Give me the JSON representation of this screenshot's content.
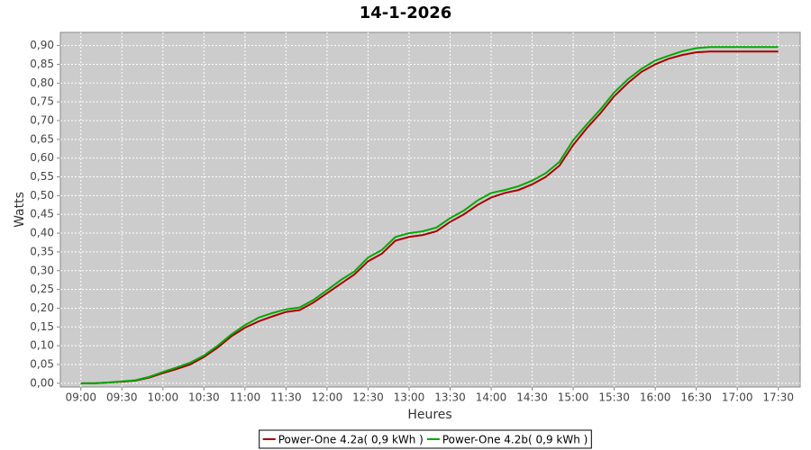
{
  "chart_data": {
    "type": "line",
    "title": "14-1-2026",
    "x_label": "Heures",
    "y_label": "Watts",
    "x": [
      540,
      550,
      560,
      570,
      580,
      590,
      600,
      610,
      620,
      630,
      640,
      650,
      660,
      670,
      680,
      690,
      700,
      710,
      720,
      730,
      740,
      750,
      760,
      770,
      780,
      790,
      800,
      810,
      820,
      830,
      840,
      850,
      860,
      870,
      880,
      890,
      900,
      910,
      920,
      930,
      940,
      950,
      960,
      970,
      980,
      990,
      1000,
      1010,
      1020,
      1030,
      1040,
      1050
    ],
    "series": [
      {
        "name": "Power-One 4.2a( 0,9 kWh )",
        "color": "#aa0000",
        "values": [
          0,
          0,
          0.002,
          0.004,
          0.007,
          0.015,
          0.027,
          0.038,
          0.05,
          0.07,
          0.095,
          0.125,
          0.148,
          0.165,
          0.178,
          0.19,
          0.195,
          0.215,
          0.24,
          0.265,
          0.29,
          0.325,
          0.345,
          0.38,
          0.39,
          0.395,
          0.405,
          0.43,
          0.45,
          0.475,
          0.495,
          0.507,
          0.515,
          0.53,
          0.55,
          0.58,
          0.635,
          0.68,
          0.72,
          0.765,
          0.8,
          0.83,
          0.85,
          0.865,
          0.875,
          0.882,
          0.884,
          0.884,
          0.884,
          0.884,
          0.884,
          0.884
        ]
      },
      {
        "name": "Power-One 4.2b( 0,9 kWh )",
        "color": "#00aa00",
        "values": [
          0,
          0,
          0.002,
          0.005,
          0.008,
          0.017,
          0.03,
          0.042,
          0.055,
          0.074,
          0.1,
          0.13,
          0.155,
          0.175,
          0.187,
          0.197,
          0.202,
          0.222,
          0.248,
          0.275,
          0.298,
          0.335,
          0.355,
          0.39,
          0.4,
          0.405,
          0.415,
          0.44,
          0.46,
          0.487,
          0.507,
          0.515,
          0.525,
          0.54,
          0.56,
          0.59,
          0.648,
          0.69,
          0.73,
          0.775,
          0.81,
          0.838,
          0.86,
          0.873,
          0.885,
          0.893,
          0.896,
          0.896,
          0.896,
          0.896,
          0.896,
          0.896
        ]
      }
    ],
    "xlim": [
      525,
      1066
    ],
    "ylim": [
      -0.01,
      0.935
    ],
    "xticks": [
      {
        "value": 540,
        "label": "09:00"
      },
      {
        "value": 570,
        "label": "09:30"
      },
      {
        "value": 600,
        "label": "10:00"
      },
      {
        "value": 630,
        "label": "10:30"
      },
      {
        "value": 660,
        "label": "11:00"
      },
      {
        "value": 690,
        "label": "11:30"
      },
      {
        "value": 720,
        "label": "12:00"
      },
      {
        "value": 750,
        "label": "12:30"
      },
      {
        "value": 780,
        "label": "13:00"
      },
      {
        "value": 810,
        "label": "13:30"
      },
      {
        "value": 840,
        "label": "14:00"
      },
      {
        "value": 870,
        "label": "14:30"
      },
      {
        "value": 900,
        "label": "15:00"
      },
      {
        "value": 930,
        "label": "15:30"
      },
      {
        "value": 960,
        "label": "16:00"
      },
      {
        "value": 990,
        "label": "16:30"
      },
      {
        "value": 1020,
        "label": "17:00"
      },
      {
        "value": 1050,
        "label": "17:30"
      }
    ],
    "yticks": [
      {
        "value": 0,
        "label": "0,00"
      },
      {
        "value": 0.05,
        "label": "0,05"
      },
      {
        "value": 0.1,
        "label": "0,10"
      },
      {
        "value": 0.15,
        "label": "0,15"
      },
      {
        "value": 0.2,
        "label": "0,20"
      },
      {
        "value": 0.25,
        "label": "0,25"
      },
      {
        "value": 0.3,
        "label": "0,30"
      },
      {
        "value": 0.35,
        "label": "0,35"
      },
      {
        "value": 0.4,
        "label": "0,40"
      },
      {
        "value": 0.45,
        "label": "0,45"
      },
      {
        "value": 0.5,
        "label": "0,50"
      },
      {
        "value": 0.55,
        "label": "0,55"
      },
      {
        "value": 0.6,
        "label": "0,60"
      },
      {
        "value": 0.65,
        "label": "0,65"
      },
      {
        "value": 0.7,
        "label": "0,70"
      },
      {
        "value": 0.75,
        "label": "0,75"
      },
      {
        "value": 0.8,
        "label": "0,80"
      },
      {
        "value": 0.85,
        "label": "0,85"
      },
      {
        "value": 0.9,
        "label": "0,90"
      }
    ],
    "grid": true
  }
}
